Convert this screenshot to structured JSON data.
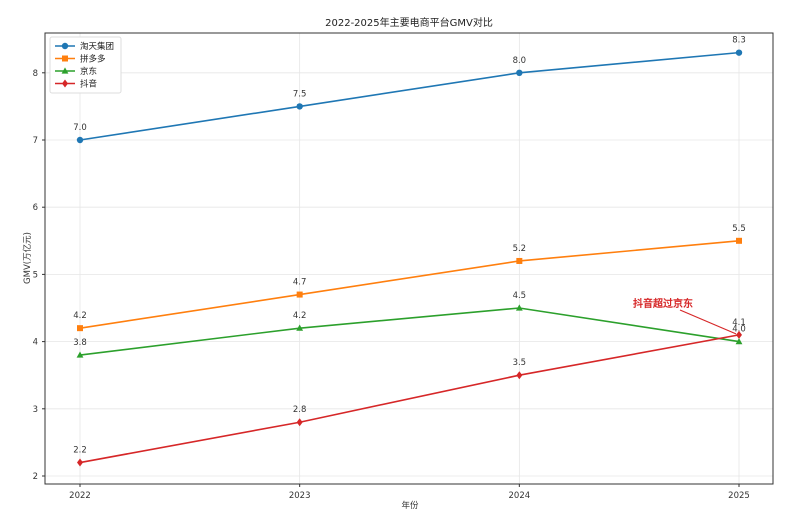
{
  "chart_data": {
    "type": "line",
    "title": "2022-2025年主要电商平台GMV对比",
    "xlabel": "年份",
    "ylabel": "GMV(万亿元)",
    "categories": [
      "2022",
      "2023",
      "2024",
      "2025"
    ],
    "x": [
      2022,
      2023,
      2024,
      2025
    ],
    "ylim": [
      1.9,
      8.5
    ],
    "yticks": [
      2,
      3,
      4,
      5,
      6,
      7,
      8
    ],
    "grid": true,
    "legend_position": "upper left",
    "series": [
      {
        "name": "淘天集团",
        "color": "#1f77b4",
        "marker": "circle",
        "values": [
          7.0,
          7.5,
          8.0,
          8.3
        ]
      },
      {
        "name": "拼多多",
        "color": "#ff7f0e",
        "marker": "square",
        "values": [
          4.2,
          4.7,
          5.2,
          5.5
        ]
      },
      {
        "name": "京东",
        "color": "#2ca02c",
        "marker": "triangle",
        "values": [
          3.8,
          4.2,
          4.5,
          4.0
        ]
      },
      {
        "name": "抖音",
        "color": "#d62728",
        "marker": "diamond",
        "values": [
          2.2,
          2.8,
          3.5,
          4.1
        ]
      }
    ],
    "annotations": [
      {
        "text": "抖音超过京东",
        "color": "#d62728",
        "x": 2025,
        "y": 4.1,
        "arrow": true
      }
    ]
  }
}
